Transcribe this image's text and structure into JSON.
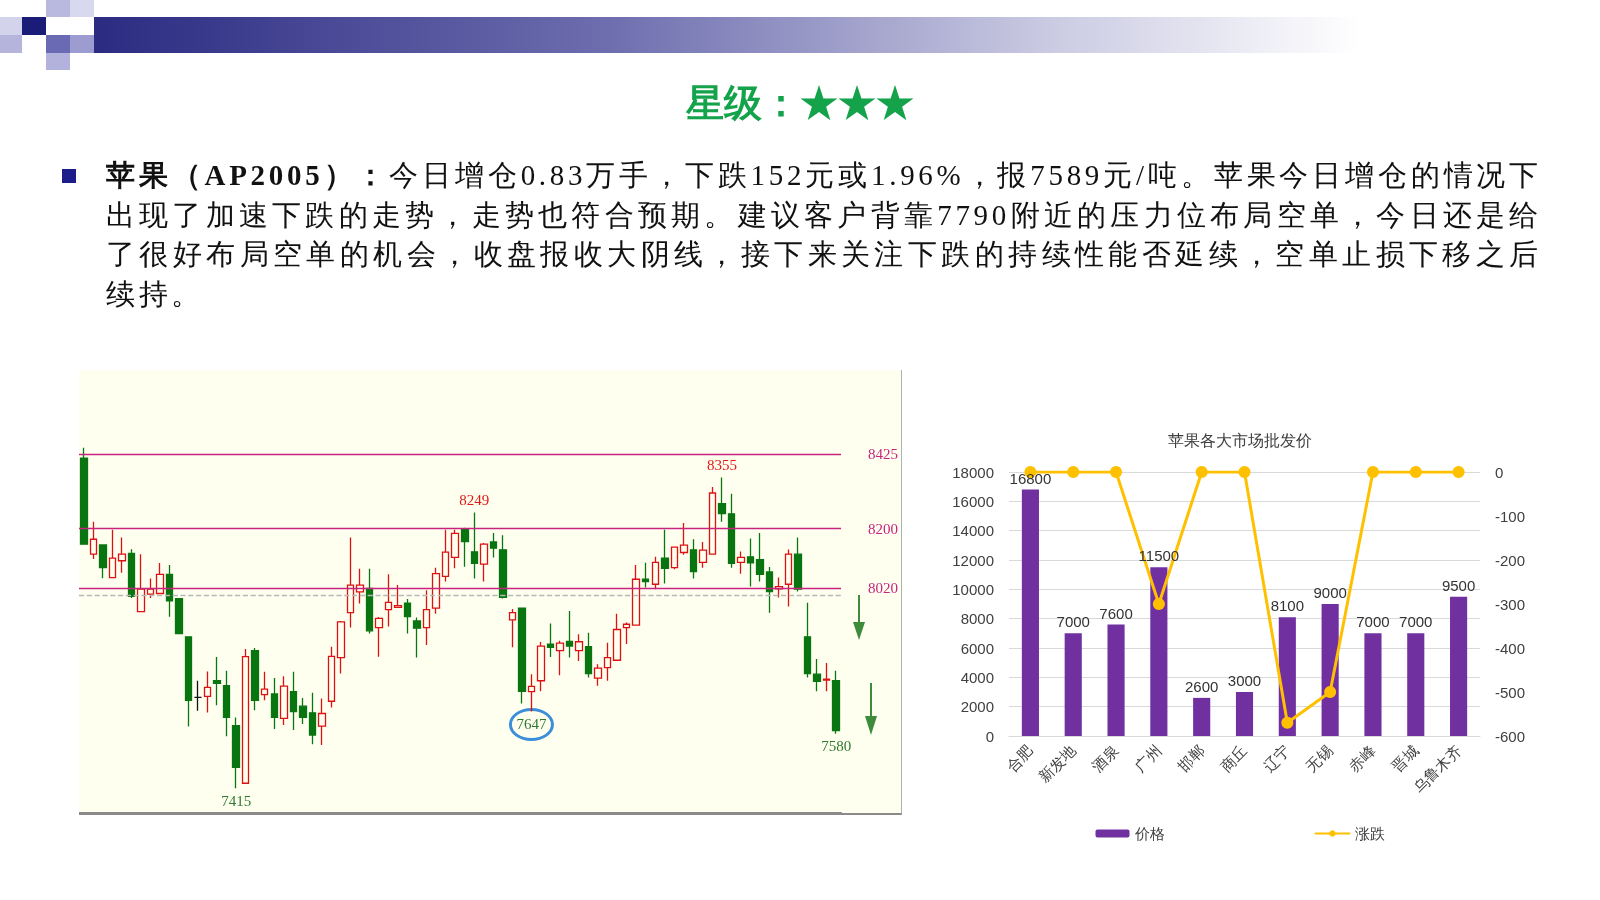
{
  "chart_data": [
    {
      "type": "other",
      "title": "星级：★★★",
      "annotations": [
        "苹果（AP2005）：",
        "今日增仓0.83万手，下跌152元或1.96%，报7589元/吨。苹果今日增仓的情况下出现了加速下跌的走势，走势也符合预期。建议客户背靠7790附近的压力位布局空单，今日还是给了很好布局空单的机会，收盘报收大阴线，接下来关注下跌的持续性能否延续，空单止损下移之后续持。"
      ]
    },
    {
      "type": "candlestick",
      "categories": [
        null,
        null,
        null,
        null,
        null,
        null,
        null,
        null,
        null,
        null,
        null,
        null,
        null,
        null,
        null,
        null,
        null,
        null,
        null,
        null,
        null,
        null,
        null,
        null,
        null,
        null,
        null,
        null,
        null,
        null,
        null,
        null,
        null,
        null,
        null,
        null,
        null,
        null,
        null,
        null,
        null,
        null,
        null,
        null,
        null,
        null,
        null,
        null,
        null,
        null,
        null,
        null,
        null,
        null,
        null,
        null,
        null,
        null,
        null,
        null,
        null,
        null,
        null,
        null,
        null,
        null,
        null,
        null,
        null,
        null,
        null,
        null,
        null,
        null,
        null,
        null,
        null,
        null,
        null,
        null
      ],
      "ohlc": [
        [
          8413,
          8445,
          8153,
          8153
        ],
        [
          8123,
          8221,
          8108,
          8168
        ],
        [
          8151,
          8151,
          8050,
          8082
        ],
        [
          8052,
          8197,
          8052,
          8111
        ],
        [
          8103,
          8173,
          8067,
          8123
        ],
        [
          8125,
          8138,
          7990,
          7995
        ],
        [
          7949,
          8123,
          7949,
          8017
        ],
        [
          8002,
          8049,
          7990,
          8017
        ],
        [
          8004,
          8096,
          8004,
          8062
        ],
        [
          8062,
          8090,
          7934,
          7982
        ],
        [
          7988,
          7988,
          7883,
          7883
        ],
        [
          7873,
          7873,
          7602,
          7681
        ],
        [
          7690,
          7740,
          7649,
          7690
        ],
        [
          7693,
          7768,
          7644,
          7720
        ],
        [
          7740,
          7812,
          7666,
          7732
        ],
        [
          7725,
          7770,
          7572,
          7629
        ],
        [
          7604,
          7629,
          7415,
          7478
        ],
        [
          7430,
          7836,
          7430,
          7813
        ],
        [
          7831,
          7839,
          7651,
          7681
        ],
        [
          7698,
          7767,
          7681,
          7715
        ],
        [
          7700,
          7748,
          7594,
          7629
        ],
        [
          7626,
          7754,
          7606,
          7724
        ],
        [
          7707,
          7767,
          7591,
          7647
        ],
        [
          7663,
          7688,
          7609,
          7629
        ],
        [
          7643,
          7704,
          7548,
          7576
        ],
        [
          7603,
          7686,
          7546,
          7641
        ],
        [
          7678,
          7843,
          7659,
          7814
        ],
        [
          7810,
          7921,
          7762,
          7918
        ],
        [
          7946,
          8173,
          7901,
          8029
        ],
        [
          8009,
          8079,
          7974,
          8029
        ],
        [
          8019,
          8079,
          7883,
          7891
        ],
        [
          7901,
          7933,
          7813,
          7929
        ],
        [
          7955,
          8062,
          7904,
          7977
        ],
        [
          7962,
          8030,
          7960,
          7967
        ],
        [
          7975,
          7987,
          7883,
          7934
        ],
        [
          7921,
          7931,
          7810,
          7899
        ],
        [
          7901,
          8014,
          7848,
          7955
        ],
        [
          7960,
          8082,
          7943,
          8064
        ],
        [
          8056,
          8197,
          8040,
          8129
        ],
        [
          8113,
          8197,
          8080,
          8186
        ],
        [
          8197,
          8203,
          8085,
          8161
        ],
        [
          8130,
          8249,
          8049,
          8095
        ],
        [
          8093,
          8157,
          8040,
          8153
        ],
        [
          8160,
          8187,
          8113,
          8141
        ],
        [
          8136,
          8180,
          7989,
          7992
        ],
        [
          7924,
          7957,
          7841,
          7946
        ],
        [
          7960,
          7960,
          7671,
          7708
        ],
        [
          7707,
          7760,
          7647,
          7723
        ],
        [
          7740,
          7857,
          7708,
          7845
        ],
        [
          7851,
          7913,
          7812,
          7841
        ],
        [
          7831,
          7861,
          7757,
          7854
        ],
        [
          7859,
          7951,
          7810,
          7845
        ],
        [
          7831,
          7881,
          7800,
          7858
        ],
        [
          7843,
          7885,
          7750,
          7762
        ],
        [
          7748,
          7790,
          7725,
          7778
        ],
        [
          7780,
          7855,
          7740,
          7810
        ],
        [
          7802,
          7943,
          7802,
          7895
        ],
        [
          7901,
          7916,
          7851,
          7911
        ],
        [
          7908,
          8090,
          7908,
          8047
        ],
        [
          8047,
          8097,
          8022,
          8040
        ],
        [
          8032,
          8115,
          8017,
          8098
        ],
        [
          8111,
          8197,
          8034,
          8080
        ],
        [
          8082,
          8144,
          8077,
          8144
        ],
        [
          8128,
          8217,
          8121,
          8150
        ],
        [
          8136,
          8168,
          8049,
          8070
        ],
        [
          8098,
          8160,
          8082,
          8135
        ],
        [
          8123,
          8326,
          8123,
          8308
        ],
        [
          8276,
          8355,
          8221,
          8246
        ],
        [
          8245,
          8306,
          8082,
          8095
        ],
        [
          8098,
          8131,
          8064,
          8113
        ],
        [
          8115,
          8170,
          8025,
          8097
        ],
        [
          8106,
          8187,
          8040,
          8062
        ],
        [
          8069,
          8084,
          7946,
          8010
        ],
        [
          8018,
          8052,
          7992,
          8025
        ],
        [
          8032,
          8137,
          7965,
          8123
        ],
        [
          8123,
          8173,
          8010,
          8017
        ],
        [
          7873,
          7976,
          7750,
          7762
        ],
        [
          7760,
          7806,
          7708,
          7738
        ],
        [
          7742,
          7794,
          7708,
          7745
        ],
        [
          7740,
          7770,
          7580,
          7589
        ]
      ],
      "ylim": [
        7340,
        8680
      ],
      "yticks": [
        8020,
        8200,
        8425
      ],
      "grid": "y",
      "tick_labels": "y",
      "ref_lines": [
        {
          "axis": "y",
          "value": 8000,
          "color": "#b8b8b8",
          "line_style": "dashed"
        }
      ],
      "annotations": [
        {
          "text": "8249",
          "y": 8249
        },
        {
          "text": "8355",
          "y": 8355
        },
        {
          "text": "7415",
          "y": 7415
        },
        {
          "text": "7647",
          "y": 7647
        },
        {
          "text": "7580",
          "y": 7580
        }
      ]
    },
    {
      "type": "bar",
      "title": "苹果各大市场批发价",
      "categories": [
        "合肥",
        "新发地",
        "酒泉",
        "广州",
        "邯郸",
        "商丘",
        "辽宁",
        "无锡",
        "赤峰",
        "晋城",
        "乌鲁木齐"
      ],
      "series": [
        {
          "name": "价格",
          "color": "#7030a0",
          "values": [
            16800,
            7000,
            7600,
            11500,
            2600,
            3000,
            8100,
            9000,
            7000,
            7000,
            9500
          ],
          "value_labels": [
            "16800",
            "7000",
            "7600",
            "11500",
            "2600",
            "3000",
            "8100",
            "9000",
            "7000",
            "7000",
            "9500"
          ]
        },
        {
          "name": "涨跌",
          "type": "line",
          "axis": "y2",
          "color": "#ffc000",
          "values": [
            0,
            0,
            0,
            -300,
            0,
            0,
            -570,
            -500,
            0,
            0,
            0
          ]
        }
      ],
      "ylim": [
        0,
        18000
      ],
      "yticks": [
        0,
        2000,
        4000,
        6000,
        8000,
        10000,
        12000,
        14000,
        16000,
        18000
      ],
      "y2lim": [
        -600,
        0
      ],
      "y2ticks": [
        -600,
        -500,
        -400,
        -300,
        -200,
        -100,
        0
      ],
      "grid": "y",
      "legend": "bottom",
      "marker": "circle"
    }
  ]
}
